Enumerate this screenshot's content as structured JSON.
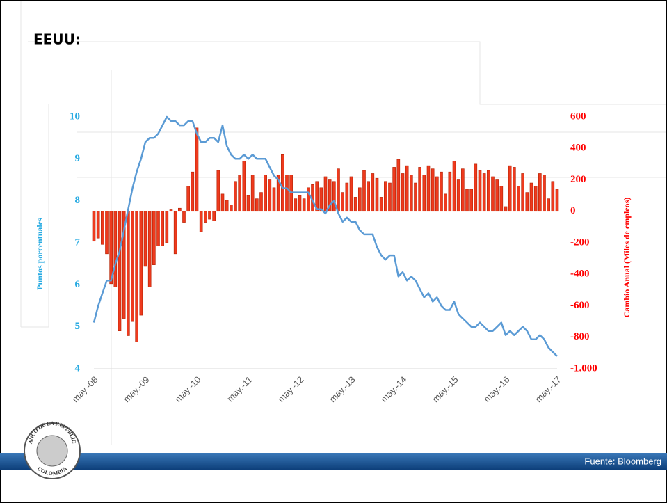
{
  "heading": "EEUU:",
  "footer": {
    "source": "Fuente: Bloomberg"
  },
  "logo": {
    "top": "BANCO DE LA REPÚBLICA",
    "bottom": "COLOMBIA"
  },
  "chart_data": {
    "type": "combo",
    "ylabel": "Puntos porcentuales",
    "y2label": "Cambio Anual (Miles de empleos)",
    "ylim": [
      4,
      10
    ],
    "yticks": [
      4,
      5,
      6,
      7,
      8,
      9,
      10
    ],
    "y2lim": [
      -1000,
      600
    ],
    "y2ticks": [
      {
        "value": -1000,
        "label": "-1.000"
      },
      -800,
      -600,
      -400,
      -200,
      0,
      200,
      400,
      600
    ],
    "ycolor": "#29abe2",
    "y2color": "#ff0000",
    "categories": [
      "may.-08",
      null,
      null,
      null,
      null,
      null,
      null,
      null,
      null,
      null,
      null,
      null,
      "may.-09",
      null,
      null,
      null,
      null,
      null,
      null,
      null,
      null,
      null,
      null,
      null,
      "may.-10",
      null,
      null,
      null,
      null,
      null,
      null,
      null,
      null,
      null,
      null,
      null,
      "may.-11",
      null,
      null,
      null,
      null,
      null,
      null,
      null,
      null,
      null,
      null,
      null,
      "may.-12",
      null,
      null,
      null,
      null,
      null,
      null,
      null,
      null,
      null,
      null,
      null,
      "may.-13",
      null,
      null,
      null,
      null,
      null,
      null,
      null,
      null,
      null,
      null,
      null,
      "may.-14",
      null,
      null,
      null,
      null,
      null,
      null,
      null,
      null,
      null,
      null,
      null,
      "may.-15",
      null,
      null,
      null,
      null,
      null,
      null,
      null,
      null,
      null,
      null,
      null,
      "may.-16",
      null,
      null,
      null,
      null,
      null,
      null,
      null,
      null,
      null,
      null,
      null,
      "may.-17"
    ],
    "series": [
      {
        "type": "bar",
        "axis": "y2",
        "color": "#ee3a1e",
        "values": [
          -190,
          -170,
          -210,
          -270,
          -460,
          -480,
          -760,
          -680,
          -790,
          -700,
          -830,
          -660,
          -350,
          -480,
          -340,
          -220,
          -220,
          -200,
          10,
          -270,
          20,
          -70,
          160,
          250,
          530,
          -130,
          -70,
          -50,
          -60,
          260,
          110,
          70,
          40,
          190,
          230,
          320,
          100,
          230,
          80,
          120,
          230,
          200,
          150,
          230,
          360,
          230,
          230,
          80,
          100,
          80,
          150,
          170,
          190,
          150,
          220,
          200,
          190,
          270,
          120,
          180,
          220,
          90,
          150,
          260,
          190,
          240,
          210,
          90,
          190,
          180,
          280,
          330,
          240,
          290,
          230,
          180,
          280,
          230,
          290,
          270,
          220,
          250,
          110,
          250,
          320,
          200,
          270,
          140,
          140,
          300,
          260,
          240,
          260,
          220,
          200,
          160,
          30,
          290,
          280,
          160,
          240,
          120,
          180,
          160,
          240,
          230,
          80,
          190,
          140
        ]
      },
      {
        "type": "line",
        "axis": "y",
        "color": "#5b9bd5",
        "values": [
          5.1,
          5.5,
          5.8,
          6.1,
          6.1,
          6.5,
          6.8,
          7.3,
          7.8,
          8.3,
          8.7,
          9.0,
          9.4,
          9.5,
          9.5,
          9.6,
          9.8,
          10.0,
          9.9,
          9.9,
          9.8,
          9.8,
          9.9,
          9.9,
          9.6,
          9.4,
          9.4,
          9.5,
          9.5,
          9.4,
          9.8,
          9.3,
          9.1,
          9.0,
          9.0,
          9.1,
          9.0,
          9.1,
          9.0,
          9.0,
          9.0,
          8.8,
          8.6,
          8.5,
          8.3,
          8.3,
          8.2,
          8.2,
          8.2,
          8.2,
          8.2,
          8.0,
          7.8,
          7.8,
          7.7,
          7.9,
          8.0,
          7.7,
          7.5,
          7.6,
          7.5,
          7.5,
          7.3,
          7.2,
          7.2,
          7.2,
          6.9,
          6.7,
          6.6,
          6.7,
          6.7,
          6.2,
          6.3,
          6.1,
          6.2,
          6.1,
          5.9,
          5.7,
          5.8,
          5.6,
          5.7,
          5.5,
          5.4,
          5.4,
          5.6,
          5.3,
          5.2,
          5.1,
          5.0,
          5.0,
          5.1,
          5.0,
          4.9,
          4.9,
          5.0,
          5.1,
          4.8,
          4.9,
          4.8,
          4.9,
          5.0,
          4.9,
          4.7,
          4.7,
          4.8,
          4.7,
          4.5,
          4.4,
          4.3
        ]
      }
    ]
  }
}
